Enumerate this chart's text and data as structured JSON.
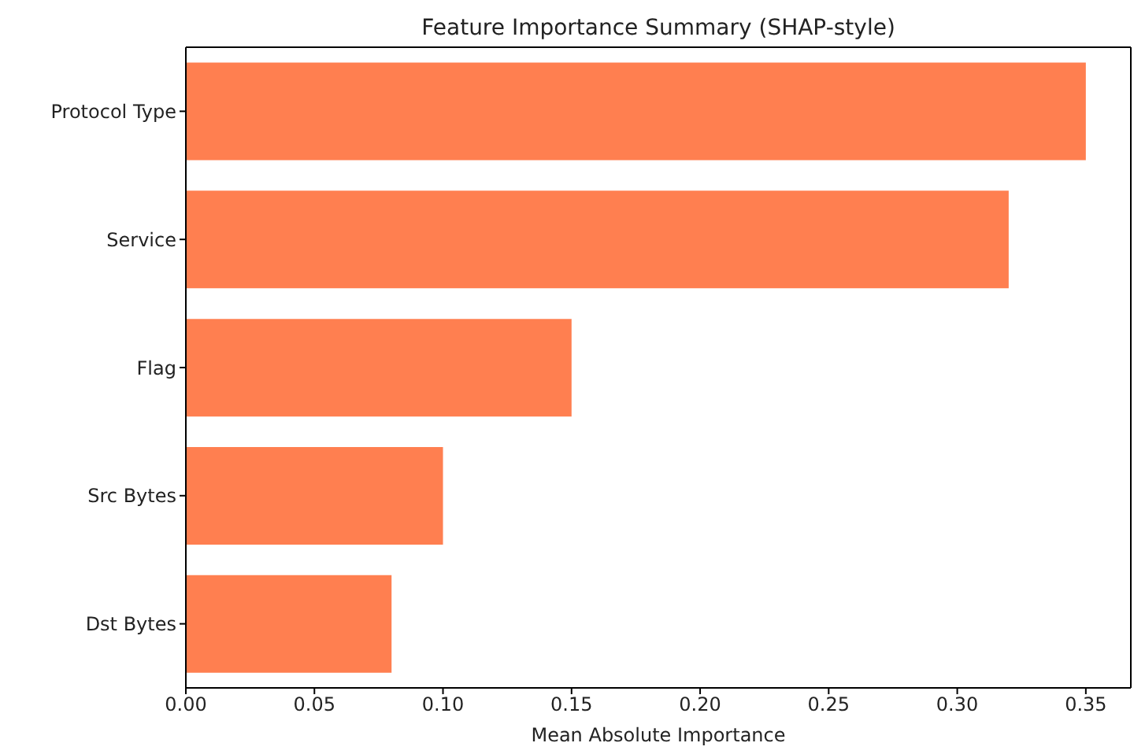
{
  "chart_data": {
    "type": "bar",
    "orientation": "horizontal",
    "title": "Feature Importance Summary (SHAP-style)",
    "xlabel": "Mean Absolute Importance",
    "categories": [
      "Protocol Type",
      "Service",
      "Flag",
      "Src Bytes",
      "Dst Bytes"
    ],
    "values": [
      0.35,
      0.32,
      0.15,
      0.1,
      0.08
    ],
    "color": "#ff7f50",
    "xlim": [
      0,
      0.3675
    ],
    "xticks": [
      {
        "value": 0,
        "label": "0.00"
      },
      {
        "value": 0.05,
        "label": "0.05"
      },
      {
        "value": 0.1,
        "label": "0.10"
      },
      {
        "value": 0.15,
        "label": "0.15"
      },
      {
        "value": 0.2,
        "label": "0.20"
      },
      {
        "value": 0.25,
        "label": "0.25"
      },
      {
        "value": 0.3,
        "label": "0.30"
      },
      {
        "value": 0.35,
        "label": "0.35"
      }
    ],
    "grid": false
  }
}
